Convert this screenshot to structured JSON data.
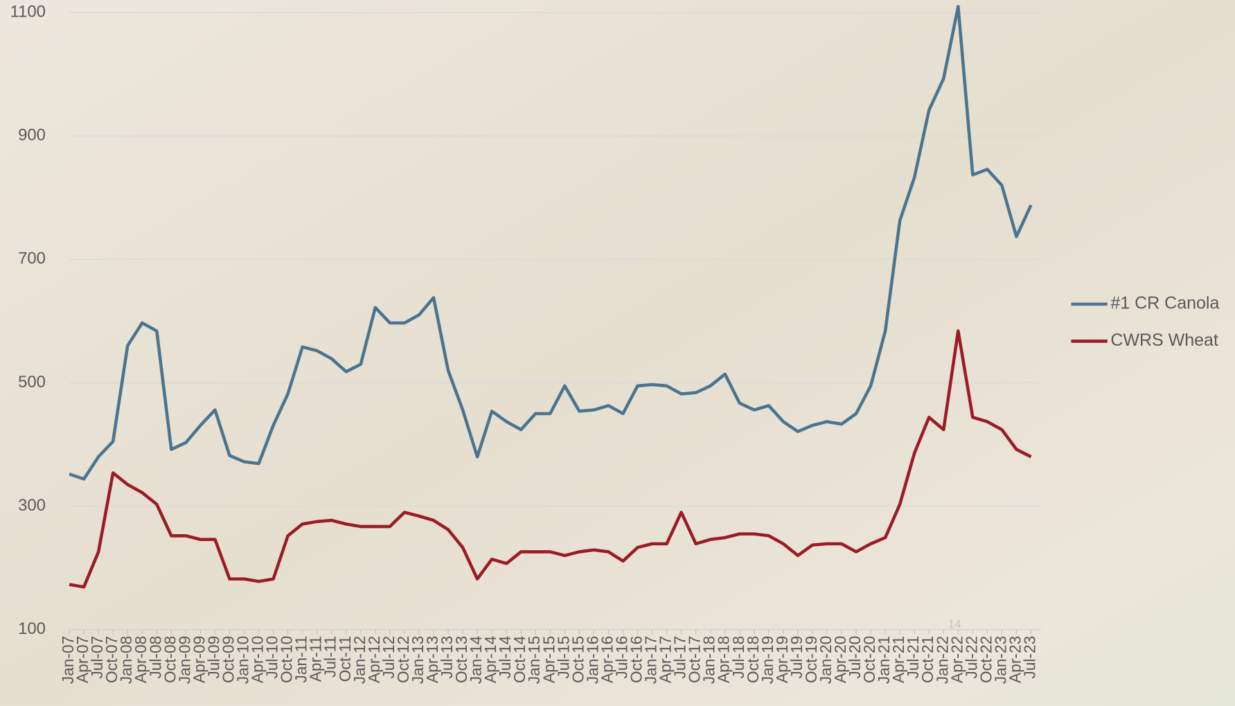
{
  "chart_data": {
    "type": "line",
    "categories": [
      "Jan-07",
      "Apr-07",
      "Jul-07",
      "Oct-07",
      "Jan-08",
      "Apr-08",
      "Jul-08",
      "Oct-08",
      "Jan-09",
      "Apr-09",
      "Jul-09",
      "Oct-09",
      "Jan-10",
      "Apr-10",
      "Jul-10",
      "Oct-10",
      "Jan-11",
      "Apr-11",
      "Jul-11",
      "Oct-11",
      "Jan-12",
      "Apr-12",
      "Jul-12",
      "Oct-12",
      "Jan-13",
      "Apr-13",
      "Jul-13",
      "Oct-13",
      "Jan-14",
      "Apr-14",
      "Jul-14",
      "Oct-14",
      "Jan-15",
      "Apr-15",
      "Jul-15",
      "Oct-15",
      "Jan-16",
      "Apr-16",
      "Jul-16",
      "Oct-16",
      "Jan-17",
      "Apr-17",
      "Jul-17",
      "Oct-17",
      "Jan-18",
      "Apr-18",
      "Jul-18",
      "Oct-18",
      "Jan-19",
      "Apr-19",
      "Jul-19",
      "Oct-19",
      "Jan-20",
      "Apr-20",
      "Jul-20",
      "Oct-20",
      "Jan-21",
      "Apr-21",
      "Jul-21",
      "Oct-21",
      "Jan-22",
      "Apr-22",
      "Jul-22",
      "Oct-22",
      "Jan-23",
      "Apr-23",
      "Jul-23"
    ],
    "series": [
      {
        "name": "#1 CR Canola",
        "color": "#4a7490",
        "values": [
          352,
          344,
          380,
          405,
          560,
          597,
          584,
          392,
          403,
          431,
          456,
          382,
          372,
          369,
          431,
          482,
          558,
          552,
          539,
          518,
          530,
          622,
          597,
          597,
          610,
          638,
          520,
          456,
          380,
          454,
          437,
          424,
          450,
          450,
          495,
          454,
          456,
          463,
          450,
          495,
          497,
          495,
          482,
          484,
          495,
          514,
          467,
          456,
          463,
          437,
          421,
          431,
          437,
          433,
          450,
          495,
          584,
          763,
          833,
          942,
          993,
          1110,
          837,
          846,
          820,
          737,
          788
        ]
      },
      {
        "name": "CWRS Wheat",
        "color": "#9b1b26",
        "values": [
          173,
          169,
          226,
          354,
          335,
          322,
          303,
          252,
          252,
          246,
          246,
          182,
          182,
          178,
          182,
          252,
          271,
          275,
          277,
          271,
          267,
          267,
          267,
          290,
          284,
          277,
          262,
          233,
          182,
          214,
          207,
          226,
          226,
          226,
          220,
          226,
          229,
          226,
          211,
          233,
          239,
          239,
          290,
          239,
          246,
          249,
          255,
          255,
          252,
          239,
          220,
          237,
          239,
          239,
          226,
          239,
          249,
          303,
          386,
          444,
          424,
          584,
          444,
          437,
          424,
          392,
          380
        ]
      }
    ],
    "ylim": [
      100,
      1100
    ],
    "yticks": [
      100,
      300,
      500,
      700,
      900,
      1100
    ],
    "grid": true,
    "legend": "right",
    "page_number": "14"
  }
}
